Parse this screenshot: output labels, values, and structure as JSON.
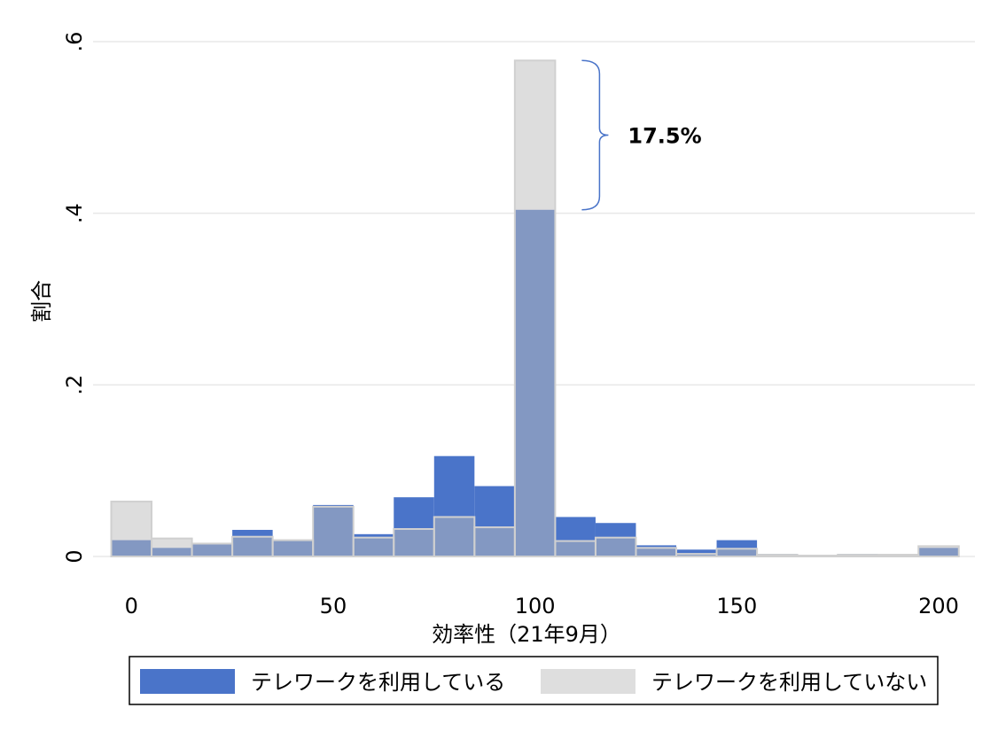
{
  "chart_data": {
    "type": "histogram",
    "xlabel": "効率性（21年9月）",
    "ylabel": "割合",
    "bins": [
      -5,
      5,
      15,
      25,
      35,
      45,
      55,
      65,
      75,
      85,
      95,
      105,
      115,
      125,
      135,
      145,
      155,
      165,
      175,
      185,
      195,
      205
    ],
    "series": [
      {
        "name": "テレワークを利用している",
        "color": "#4a74c9",
        "values": [
          0.019,
          0.01,
          0.014,
          0.031,
          0.018,
          0.06,
          0.026,
          0.069,
          0.117,
          0.082,
          0.404,
          0.046,
          0.039,
          0.013,
          0.008,
          0.019,
          0.003,
          0.001,
          0.003,
          0.002,
          0.01
        ]
      },
      {
        "name": "テレワークを利用していない",
        "color": "#bcbcbc",
        "values": [
          0.064,
          0.021,
          0.015,
          0.023,
          0.019,
          0.058,
          0.022,
          0.032,
          0.046,
          0.034,
          0.578,
          0.018,
          0.022,
          0.01,
          0.003,
          0.009,
          0.002,
          0.001,
          0.002,
          0.002,
          0.012
        ]
      }
    ],
    "annotation": "17.5%",
    "xlim": [
      -9.5,
      209
    ],
    "ylim": [
      0,
      0.6
    ],
    "xticks": [
      0,
      50,
      100,
      150,
      200
    ],
    "yticks": [
      0,
      {
        "value": 0.2,
        "label": ".2"
      },
      {
        "value": 0.4,
        "label": ".4"
      },
      {
        "value": 0.6,
        "label": ".6"
      }
    ],
    "grid": true
  }
}
